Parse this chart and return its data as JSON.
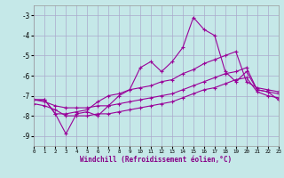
{
  "background_color": "#c5e8e8",
  "grid_color": "#aaaacc",
  "line_color": "#990099",
  "xlabel": "Windchill (Refroidissement éolien,°C)",
  "xlim": [
    0,
    23
  ],
  "ylim": [
    -9.5,
    -2.5
  ],
  "yticks": [
    -9,
    -8,
    -7,
    -6,
    -5,
    -4,
    -3
  ],
  "xticks": [
    0,
    1,
    2,
    3,
    4,
    5,
    6,
    7,
    8,
    9,
    10,
    11,
    12,
    13,
    14,
    15,
    16,
    17,
    18,
    19,
    20,
    21,
    22,
    23
  ],
  "hours": [
    0,
    1,
    2,
    3,
    4,
    5,
    6,
    7,
    8,
    9,
    10,
    11,
    12,
    13,
    14,
    15,
    16,
    17,
    18,
    19,
    20,
    21,
    22,
    23
  ],
  "line_volatile": [
    -7.2,
    -7.2,
    -7.9,
    -8.9,
    -7.9,
    -7.8,
    -8.0,
    -7.5,
    -7.0,
    -6.7,
    -5.6,
    -5.3,
    -5.8,
    -5.3,
    -4.6,
    -3.1,
    -3.7,
    -4.0,
    -5.8,
    -6.3,
    -5.8,
    -6.7,
    -6.8,
    -7.2
  ],
  "line_upper": [
    -7.2,
    -7.2,
    -7.9,
    -7.9,
    -7.8,
    -7.7,
    -7.3,
    -7.0,
    -6.9,
    -6.7,
    -6.6,
    -6.5,
    -6.3,
    -6.2,
    -5.9,
    -5.7,
    -5.4,
    -5.2,
    -5.0,
    -4.8,
    -6.3,
    -6.6,
    -6.7,
    -6.8
  ],
  "line_middle": [
    -7.2,
    -7.3,
    -7.5,
    -7.6,
    -7.6,
    -7.6,
    -7.5,
    -7.5,
    -7.4,
    -7.3,
    -7.2,
    -7.1,
    -7.0,
    -6.9,
    -6.7,
    -6.5,
    -6.3,
    -6.1,
    -5.9,
    -5.8,
    -5.6,
    -6.7,
    -6.8,
    -6.9
  ],
  "line_lower": [
    -7.4,
    -7.5,
    -7.7,
    -8.0,
    -8.0,
    -8.0,
    -7.9,
    -7.9,
    -7.8,
    -7.7,
    -7.6,
    -7.5,
    -7.4,
    -7.3,
    -7.1,
    -6.9,
    -6.7,
    -6.6,
    -6.4,
    -6.2,
    -6.1,
    -6.8,
    -7.0,
    -7.1
  ]
}
